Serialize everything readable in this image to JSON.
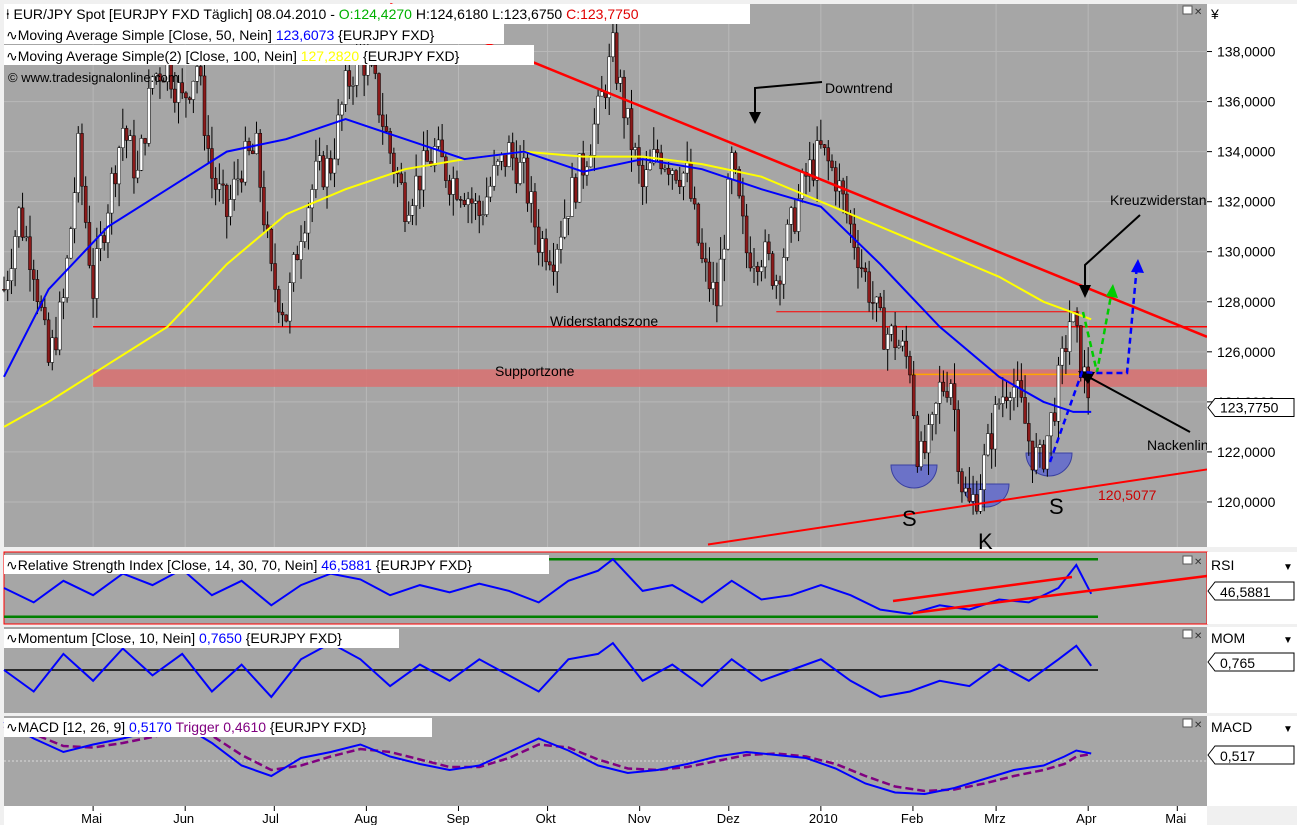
{
  "chart_data": {
    "type": "line",
    "instrument": "EURJPY FXD",
    "price_axis": {
      "currency_symbol": "¥",
      "ticks": [
        120,
        122,
        124,
        126,
        128,
        130,
        132,
        134,
        136,
        138
      ],
      "tick_labels": [
        "120,0000",
        "122,0000",
        "124,0000",
        "126,0000",
        "128,0000",
        "130,0000",
        "132,0000",
        "134,0000",
        "136,0000",
        "138,0000"
      ],
      "ylim": [
        118.2,
        139.9
      ],
      "last_value_label": "123,7750",
      "last_value": 123.775
    },
    "time_axis": {
      "labels": [
        "Mai",
        "Jun",
        "Jul",
        "Aug",
        "Sep",
        "Okt",
        "Nov",
        "Dez",
        "2010",
        "Feb",
        "Mrz",
        "Apr",
        "Mai"
      ],
      "label_days": [
        55,
        86,
        116,
        147,
        178,
        208,
        239,
        269,
        300,
        331,
        359,
        390,
        420
      ],
      "xlim": [
        25,
        430
      ]
    },
    "header": {
      "line1_pre": "EUR/JPY Spot [EURJPY FXD  Täglich] 08.04.2010 - ",
      "open": "O:124,4270",
      "high": "H:124,6180",
      "low": "L:123,6750",
      "close": "C:123,7750",
      "ma50_pre": "Moving Average Simple [Close, 50, Nein] ",
      "ma50_value": "123,6073",
      "ma50_post": " {EURJPY FXD}",
      "ma100_pre": "Moving Average Simple(2) [Close, 100, Nein] ",
      "ma100_value": "127,2820",
      "ma100_post": " {EURJPY FXD}",
      "copyright": "© www.tradesignalonline.com"
    },
    "annotations": {
      "downtrend": "Downtrend",
      "kreuz": "Kreuzwiderstand",
      "nacken": "Nackenlinie",
      "widerstand": "Widerstandszone",
      "support": "Supportzone",
      "level_label": "120,5077",
      "s_left": "S",
      "k": "K",
      "s_right": "S"
    },
    "levels": {
      "widerstand": 127.0,
      "widerstand_start_day": 55,
      "support_low": 124.6,
      "support_high": 125.3,
      "trend_support_start": [
        [
          262,
          118.3
        ],
        [
          430,
          121.3
        ]
      ],
      "downtrend_line": [
        [
          155,
          139.9
        ],
        [
          430,
          126.6
        ]
      ],
      "neck_short": [
        [
          330,
          125.1
        ],
        [
          387,
          125.1
        ]
      ],
      "res_short": [
        [
          285,
          127.6
        ],
        [
          387,
          127.6
        ]
      ]
    },
    "price_series": [
      {
        "d": 25,
        "v": 128.5
      },
      {
        "d": 30,
        "v": 131.5
      },
      {
        "d": 35,
        "v": 129.5
      },
      {
        "d": 40,
        "v": 125.5
      },
      {
        "d": 45,
        "v": 128
      },
      {
        "d": 50,
        "v": 134
      },
      {
        "d": 55,
        "v": 128.5
      },
      {
        "d": 60,
        "v": 132
      },
      {
        "d": 65,
        "v": 135
      },
      {
        "d": 70,
        "v": 133
      },
      {
        "d": 75,
        "v": 137
      },
      {
        "d": 80,
        "v": 137.5
      },
      {
        "d": 85,
        "v": 136
      },
      {
        "d": 90,
        "v": 137.5
      },
      {
        "d": 95,
        "v": 133
      },
      {
        "d": 100,
        "v": 131.5
      },
      {
        "d": 105,
        "v": 133.5
      },
      {
        "d": 110,
        "v": 134
      },
      {
        "d": 115,
        "v": 129
      },
      {
        "d": 120,
        "v": 127.5
      },
      {
        "d": 125,
        "v": 131
      },
      {
        "d": 130,
        "v": 133
      },
      {
        "d": 135,
        "v": 133.5
      },
      {
        "d": 140,
        "v": 136.5
      },
      {
        "d": 145,
        "v": 138
      },
      {
        "d": 150,
        "v": 136.5
      },
      {
        "d": 155,
        "v": 134
      },
      {
        "d": 160,
        "v": 132
      },
      {
        "d": 165,
        "v": 133
      },
      {
        "d": 170,
        "v": 134
      },
      {
        "d": 175,
        "v": 133
      },
      {
        "d": 180,
        "v": 132.5
      },
      {
        "d": 185,
        "v": 131.5
      },
      {
        "d": 190,
        "v": 133
      },
      {
        "d": 195,
        "v": 134
      },
      {
        "d": 200,
        "v": 133
      },
      {
        "d": 205,
        "v": 130.5
      },
      {
        "d": 210,
        "v": 130
      },
      {
        "d": 215,
        "v": 132
      },
      {
        "d": 220,
        "v": 133.5
      },
      {
        "d": 225,
        "v": 135.5
      },
      {
        "d": 230,
        "v": 138
      },
      {
        "d": 235,
        "v": 135
      },
      {
        "d": 240,
        "v": 132.5
      },
      {
        "d": 245,
        "v": 134
      },
      {
        "d": 250,
        "v": 133.5
      },
      {
        "d": 255,
        "v": 133
      },
      {
        "d": 260,
        "v": 129.5
      },
      {
        "d": 265,
        "v": 128
      },
      {
        "d": 270,
        "v": 133.5
      },
      {
        "d": 275,
        "v": 130
      },
      {
        "d": 280,
        "v": 130
      },
      {
        "d": 285,
        "v": 129
      },
      {
        "d": 290,
        "v": 131
      },
      {
        "d": 295,
        "v": 133
      },
      {
        "d": 300,
        "v": 134
      },
      {
        "d": 305,
        "v": 133
      },
      {
        "d": 310,
        "v": 131
      },
      {
        "d": 315,
        "v": 129
      },
      {
        "d": 320,
        "v": 127
      },
      {
        "d": 325,
        "v": 126.5
      },
      {
        "d": 330,
        "v": 125.5
      },
      {
        "d": 333,
        "v": 121.5
      },
      {
        "d": 337,
        "v": 122.5
      },
      {
        "d": 340,
        "v": 124.5
      },
      {
        "d": 344,
        "v": 125
      },
      {
        "d": 347,
        "v": 121
      },
      {
        "d": 350,
        "v": 119.8
      },
      {
        "d": 353,
        "v": 120.5
      },
      {
        "d": 356,
        "v": 122
      },
      {
        "d": 360,
        "v": 124
      },
      {
        "d": 364,
        "v": 125
      },
      {
        "d": 368,
        "v": 123.5
      },
      {
        "d": 371,
        "v": 122
      },
      {
        "d": 374,
        "v": 121.5
      },
      {
        "d": 378,
        "v": 123.5
      },
      {
        "d": 381,
        "v": 125.3
      },
      {
        "d": 384,
        "v": 127.5
      },
      {
        "d": 386,
        "v": 126.5
      },
      {
        "d": 388,
        "v": 125.3
      },
      {
        "d": 390,
        "v": 124.4
      },
      {
        "d": 391,
        "v": 123.8
      }
    ],
    "ma50_series": [
      {
        "d": 25,
        "v": 125
      },
      {
        "d": 40,
        "v": 128.5
      },
      {
        "d": 60,
        "v": 131
      },
      {
        "d": 80,
        "v": 132.5
      },
      {
        "d": 100,
        "v": 134
      },
      {
        "d": 120,
        "v": 134.5
      },
      {
        "d": 140,
        "v": 135.3
      },
      {
        "d": 160,
        "v": 134.5
      },
      {
        "d": 180,
        "v": 133.7
      },
      {
        "d": 200,
        "v": 134
      },
      {
        "d": 220,
        "v": 133.2
      },
      {
        "d": 240,
        "v": 133.7
      },
      {
        "d": 260,
        "v": 133.3
      },
      {
        "d": 280,
        "v": 132.5
      },
      {
        "d": 300,
        "v": 131.8
      },
      {
        "d": 320,
        "v": 129.5
      },
      {
        "d": 340,
        "v": 127
      },
      {
        "d": 360,
        "v": 125
      },
      {
        "d": 375,
        "v": 124
      },
      {
        "d": 385,
        "v": 123.6
      },
      {
        "d": 391,
        "v": 123.6
      }
    ],
    "ma100_series": [
      {
        "d": 25,
        "v": 123
      },
      {
        "d": 40,
        "v": 124
      },
      {
        "d": 60,
        "v": 125.5
      },
      {
        "d": 80,
        "v": 127
      },
      {
        "d": 100,
        "v": 129.5
      },
      {
        "d": 120,
        "v": 131.5
      },
      {
        "d": 140,
        "v": 132.5
      },
      {
        "d": 160,
        "v": 133.3
      },
      {
        "d": 180,
        "v": 133.7
      },
      {
        "d": 200,
        "v": 134
      },
      {
        "d": 220,
        "v": 133.8
      },
      {
        "d": 240,
        "v": 133.8
      },
      {
        "d": 260,
        "v": 133.5
      },
      {
        "d": 280,
        "v": 133
      },
      {
        "d": 300,
        "v": 132
      },
      {
        "d": 320,
        "v": 131
      },
      {
        "d": 340,
        "v": 130
      },
      {
        "d": 360,
        "v": 129
      },
      {
        "d": 375,
        "v": 128
      },
      {
        "d": 391,
        "v": 127.3
      }
    ],
    "rsi": {
      "label_pre": "Relative Strength Index [Close, 14, 30, 70, Nein] ",
      "label_value": "46,5881",
      "label_post": " {EURJPY FXD}",
      "axis_title": "RSI",
      "last_label": "46,5881",
      "upper": 70,
      "lower": 30,
      "ylim": [
        25,
        75
      ],
      "series": [
        {
          "d": 25,
          "v": 50
        },
        {
          "d": 35,
          "v": 40
        },
        {
          "d": 45,
          "v": 55
        },
        {
          "d": 55,
          "v": 45
        },
        {
          "d": 65,
          "v": 60
        },
        {
          "d": 75,
          "v": 52
        },
        {
          "d": 85,
          "v": 63
        },
        {
          "d": 95,
          "v": 45
        },
        {
          "d": 105,
          "v": 55
        },
        {
          "d": 115,
          "v": 38
        },
        {
          "d": 125,
          "v": 52
        },
        {
          "d": 135,
          "v": 60
        },
        {
          "d": 145,
          "v": 56
        },
        {
          "d": 155,
          "v": 45
        },
        {
          "d": 165,
          "v": 52
        },
        {
          "d": 175,
          "v": 47
        },
        {
          "d": 185,
          "v": 53
        },
        {
          "d": 195,
          "v": 48
        },
        {
          "d": 205,
          "v": 40
        },
        {
          "d": 215,
          "v": 55
        },
        {
          "d": 225,
          "v": 62
        },
        {
          "d": 230,
          "v": 70
        },
        {
          "d": 240,
          "v": 48
        },
        {
          "d": 250,
          "v": 52
        },
        {
          "d": 260,
          "v": 40
        },
        {
          "d": 270,
          "v": 55
        },
        {
          "d": 280,
          "v": 42
        },
        {
          "d": 290,
          "v": 45
        },
        {
          "d": 300,
          "v": 52
        },
        {
          "d": 310,
          "v": 45
        },
        {
          "d": 320,
          "v": 35
        },
        {
          "d": 330,
          "v": 32
        },
        {
          "d": 340,
          "v": 38
        },
        {
          "d": 350,
          "v": 35
        },
        {
          "d": 360,
          "v": 42
        },
        {
          "d": 370,
          "v": 40
        },
        {
          "d": 380,
          "v": 50
        },
        {
          "d": 386,
          "v": 66
        },
        {
          "d": 391,
          "v": 46
        }
      ]
    },
    "momentum": {
      "label_pre": "Momentum [Close, 10, Nein] ",
      "label_value": "0,7650",
      "label_post": " {EURJPY FXD}",
      "axis_title": "MOM",
      "last_label": "0,765",
      "zero": 0,
      "ylim": [
        -8,
        8
      ],
      "series": [
        {
          "d": 25,
          "v": 0
        },
        {
          "d": 35,
          "v": -4
        },
        {
          "d": 45,
          "v": 3
        },
        {
          "d": 55,
          "v": -2
        },
        {
          "d": 65,
          "v": 4
        },
        {
          "d": 75,
          "v": -1
        },
        {
          "d": 85,
          "v": 3
        },
        {
          "d": 95,
          "v": -4
        },
        {
          "d": 105,
          "v": 1
        },
        {
          "d": 115,
          "v": -5
        },
        {
          "d": 125,
          "v": 2
        },
        {
          "d": 135,
          "v": 5
        },
        {
          "d": 145,
          "v": 2
        },
        {
          "d": 155,
          "v": -3
        },
        {
          "d": 165,
          "v": 1
        },
        {
          "d": 175,
          "v": -2
        },
        {
          "d": 185,
          "v": 2
        },
        {
          "d": 195,
          "v": -1
        },
        {
          "d": 205,
          "v": -4
        },
        {
          "d": 215,
          "v": 2
        },
        {
          "d": 225,
          "v": 3
        },
        {
          "d": 230,
          "v": 5
        },
        {
          "d": 240,
          "v": -2
        },
        {
          "d": 250,
          "v": 1
        },
        {
          "d": 260,
          "v": -3
        },
        {
          "d": 270,
          "v": 2
        },
        {
          "d": 280,
          "v": -2
        },
        {
          "d": 290,
          "v": 0
        },
        {
          "d": 300,
          "v": 2
        },
        {
          "d": 310,
          "v": -2
        },
        {
          "d": 320,
          "v": -5
        },
        {
          "d": 330,
          "v": -4
        },
        {
          "d": 340,
          "v": -2
        },
        {
          "d": 350,
          "v": -3
        },
        {
          "d": 360,
          "v": 1
        },
        {
          "d": 370,
          "v": -2
        },
        {
          "d": 380,
          "v": 2
        },
        {
          "d": 386,
          "v": 4.5
        },
        {
          "d": 391,
          "v": 0.765
        }
      ]
    },
    "macd": {
      "label_pre": "MACD [12, 26, 9] ",
      "label_value": "0,5170",
      "label_trigger_pre": " Trigger ",
      "label_trigger": "0,4610",
      "label_post": " {EURJPY FXD}",
      "axis_title": "MACD",
      "last_label": "0,517",
      "zero": 0,
      "ylim": [
        -3,
        3
      ],
      "series": [
        {
          "d": 25,
          "v": 2.6
        },
        {
          "d": 35,
          "v": 1.5
        },
        {
          "d": 45,
          "v": 0.6
        },
        {
          "d": 55,
          "v": 1.1
        },
        {
          "d": 65,
          "v": 1.5
        },
        {
          "d": 75,
          "v": 2
        },
        {
          "d": 85,
          "v": 2.4
        },
        {
          "d": 95,
          "v": 1.2
        },
        {
          "d": 105,
          "v": -0.3
        },
        {
          "d": 115,
          "v": -1
        },
        {
          "d": 125,
          "v": 0.2
        },
        {
          "d": 135,
          "v": 0.6
        },
        {
          "d": 145,
          "v": 1.1
        },
        {
          "d": 155,
          "v": 0.3
        },
        {
          "d": 165,
          "v": -0.2
        },
        {
          "d": 175,
          "v": -0.6
        },
        {
          "d": 185,
          "v": -0.3
        },
        {
          "d": 195,
          "v": 0.6
        },
        {
          "d": 205,
          "v": 1.5
        },
        {
          "d": 215,
          "v": 0.7
        },
        {
          "d": 225,
          "v": -0.3
        },
        {
          "d": 235,
          "v": -0.8
        },
        {
          "d": 245,
          "v": -0.6
        },
        {
          "d": 255,
          "v": -0.2
        },
        {
          "d": 265,
          "v": 0.3
        },
        {
          "d": 275,
          "v": 0.6
        },
        {
          "d": 285,
          "v": 0.4
        },
        {
          "d": 295,
          "v": 0.2
        },
        {
          "d": 305,
          "v": -0.5
        },
        {
          "d": 315,
          "v": -1.5
        },
        {
          "d": 325,
          "v": -2.1
        },
        {
          "d": 335,
          "v": -2.2
        },
        {
          "d": 345,
          "v": -1.8
        },
        {
          "d": 355,
          "v": -1.2
        },
        {
          "d": 365,
          "v": -0.6
        },
        {
          "d": 375,
          "v": -0.3
        },
        {
          "d": 382,
          "v": 0.3
        },
        {
          "d": 386,
          "v": 0.7
        },
        {
          "d": 391,
          "v": 0.5
        }
      ],
      "trigger_series": [
        {
          "d": 25,
          "v": 2.3
        },
        {
          "d": 35,
          "v": 1.8
        },
        {
          "d": 45,
          "v": 1.0
        },
        {
          "d": 55,
          "v": 0.9
        },
        {
          "d": 65,
          "v": 1.2
        },
        {
          "d": 75,
          "v": 1.6
        },
        {
          "d": 85,
          "v": 2.1
        },
        {
          "d": 95,
          "v": 1.7
        },
        {
          "d": 105,
          "v": 0.4
        },
        {
          "d": 115,
          "v": -0.6
        },
        {
          "d": 125,
          "v": -0.3
        },
        {
          "d": 135,
          "v": 0.3
        },
        {
          "d": 145,
          "v": 0.8
        },
        {
          "d": 155,
          "v": 0.6
        },
        {
          "d": 165,
          "v": 0.1
        },
        {
          "d": 175,
          "v": -0.4
        },
        {
          "d": 185,
          "v": -0.4
        },
        {
          "d": 195,
          "v": 0.2
        },
        {
          "d": 205,
          "v": 1.1
        },
        {
          "d": 215,
          "v": 0.9
        },
        {
          "d": 225,
          "v": 0.1
        },
        {
          "d": 235,
          "v": -0.5
        },
        {
          "d": 245,
          "v": -0.6
        },
        {
          "d": 255,
          "v": -0.4
        },
        {
          "d": 265,
          "v": 0.0
        },
        {
          "d": 275,
          "v": 0.4
        },
        {
          "d": 285,
          "v": 0.5
        },
        {
          "d": 295,
          "v": 0.3
        },
        {
          "d": 305,
          "v": -0.2
        },
        {
          "d": 315,
          "v": -1.0
        },
        {
          "d": 325,
          "v": -1.7
        },
        {
          "d": 335,
          "v": -2.0
        },
        {
          "d": 345,
          "v": -1.9
        },
        {
          "d": 355,
          "v": -1.5
        },
        {
          "d": 365,
          "v": -1.0
        },
        {
          "d": 375,
          "v": -0.6
        },
        {
          "d": 382,
          "v": -0.2
        },
        {
          "d": 386,
          "v": 0.3
        },
        {
          "d": 391,
          "v": 0.46
        }
      ]
    },
    "colors": {
      "background": "#a6a6a6",
      "price": "#000000",
      "candle_down": "#8b1a1a",
      "ma50": "#0000ff",
      "ma100": "#ffff00",
      "resistance": "#ff0000",
      "support_zone": "#d97070",
      "rsi_bands": "#008000",
      "indicator": "#0000ff",
      "trigger": "#800080",
      "head_shoulder": "#6b72c8",
      "arrow_green": "#00cc00",
      "arrow_blue": "#0000ff",
      "frame": "#ff0000"
    }
  }
}
